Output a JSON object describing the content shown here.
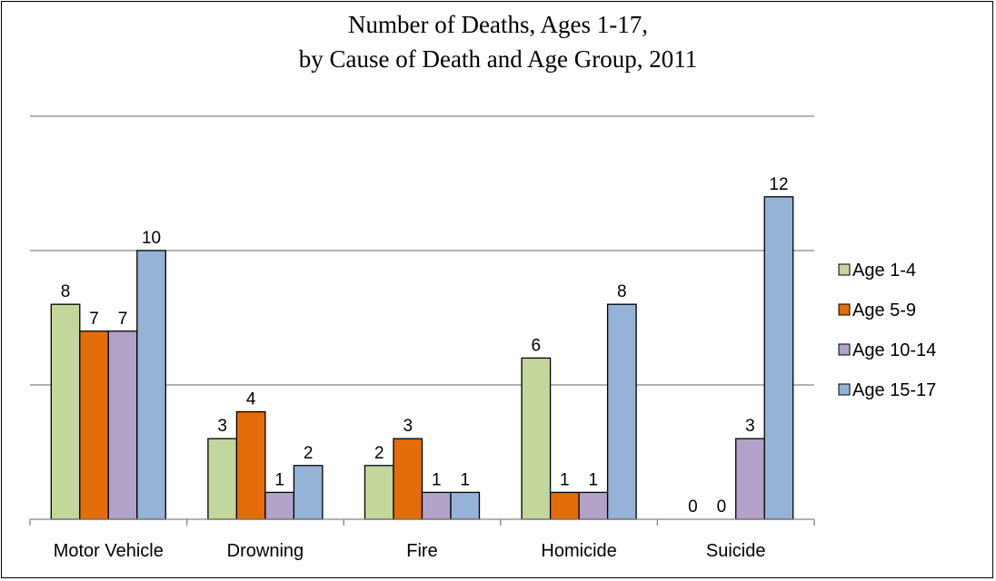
{
  "chart_data": {
    "type": "bar",
    "title_lines": [
      "Number of Deaths, Ages 1-17,",
      "by Cause of Death and Age Group, 2011"
    ],
    "categories": [
      "Motor Vehicle",
      "Drowning",
      "Fire",
      "Homicide",
      "Suicide"
    ],
    "series": [
      {
        "name": "Age 1-4",
        "color": "#c3d69b",
        "values": [
          8,
          3,
          2,
          6,
          0
        ]
      },
      {
        "name": "Age 5-9",
        "color": "#e46c0a",
        "values": [
          7,
          4,
          3,
          1,
          0
        ]
      },
      {
        "name": "Age 10-14",
        "color": "#b3a2c7",
        "values": [
          7,
          1,
          1,
          1,
          3
        ]
      },
      {
        "name": "Age 15-17",
        "color": "#95b3d7",
        "values": [
          10,
          2,
          1,
          8,
          12
        ]
      }
    ],
    "ylim": [
      0,
      15
    ],
    "y_gridlines": [
      5,
      10,
      15
    ],
    "grid": true,
    "legend_position": "right",
    "data_labels": true
  }
}
